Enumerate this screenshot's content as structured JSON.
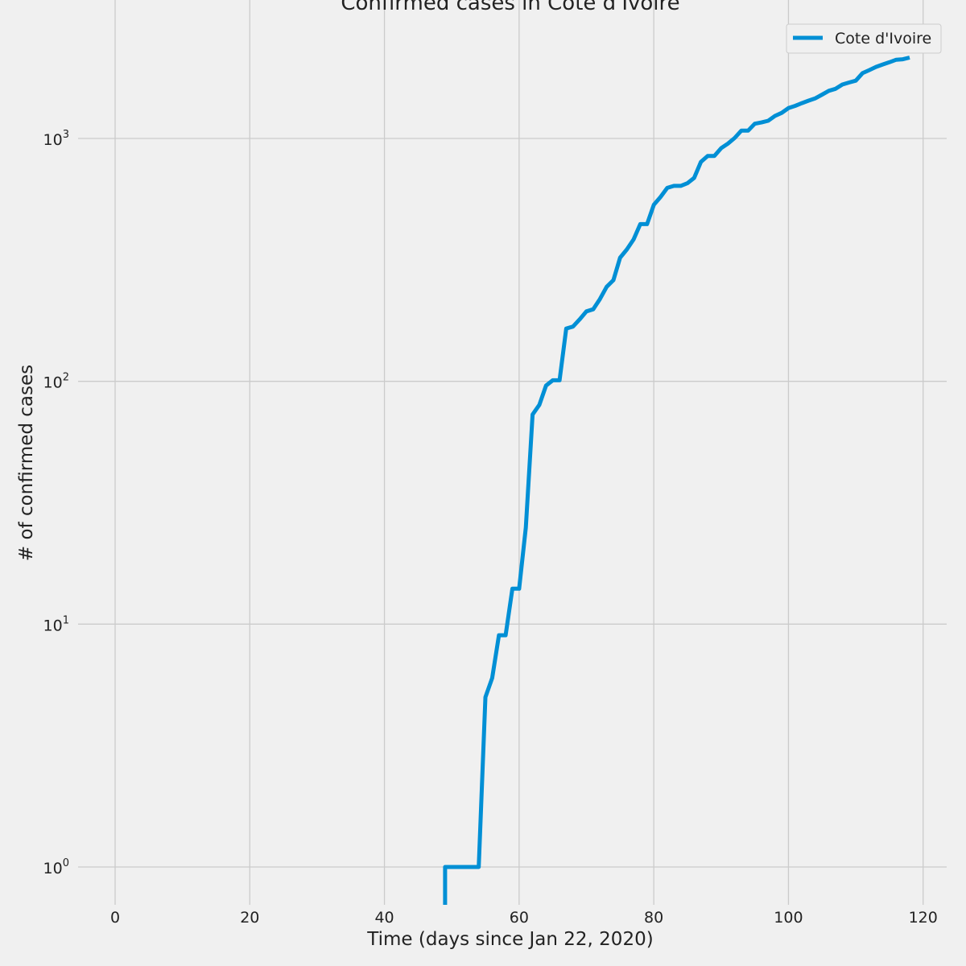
{
  "chart_data": {
    "type": "line",
    "title": "Confirmed cases in Cote d'Ivoire",
    "xlabel": "Time (days since Jan 22, 2020)",
    "ylabel": "# of confirmed cases",
    "xlim": [
      -5.5,
      123.5
    ],
    "ylim": [
      0.7,
      2700
    ],
    "y_scale": "log",
    "grid": true,
    "legend_position": "top-right",
    "x_ticks": [
      0,
      20,
      40,
      60,
      80,
      100,
      120
    ],
    "y_ticks": [
      {
        "value": 1,
        "base": "10",
        "exp": "0"
      },
      {
        "value": 10,
        "base": "10",
        "exp": "1"
      },
      {
        "value": 100,
        "base": "10",
        "exp": "2"
      },
      {
        "value": 1000,
        "base": "10",
        "exp": "3"
      }
    ],
    "colors": {
      "background": "#f0f0f0",
      "line": "#008fd5",
      "grid": "#cbcbcb"
    },
    "series": [
      {
        "name": "Cote d'Ivoire",
        "x": [
          49,
          50,
          51,
          52,
          53,
          54,
          55,
          56,
          57,
          58,
          59,
          60,
          61,
          62,
          63,
          64,
          65,
          66,
          67,
          68,
          69,
          70,
          71,
          72,
          73,
          74,
          75,
          76,
          77,
          78,
          79,
          80,
          81,
          82,
          83,
          84,
          85,
          86,
          87,
          88,
          89,
          90,
          91,
          92,
          93,
          94,
          95,
          96,
          97,
          98,
          99,
          100,
          101,
          102,
          103,
          104,
          105,
          106,
          107,
          108,
          109,
          110,
          111,
          112,
          113,
          114,
          115,
          116,
          117,
          118
        ],
        "values": [
          1,
          1,
          1,
          1,
          1,
          1,
          5,
          6,
          9,
          9,
          14,
          14,
          25,
          73,
          80,
          96,
          101,
          101,
          165,
          168,
          180,
          194,
          198,
          218,
          245,
          261,
          323,
          349,
          384,
          444,
          444,
          533,
          574,
          626,
          638,
          638,
          654,
          688,
          801,
          847,
          847,
          912,
          952,
          1004,
          1077,
          1077,
          1150,
          1164,
          1183,
          1238,
          1275,
          1333,
          1362,
          1398,
          1432,
          1464,
          1516,
          1571,
          1602,
          1667,
          1700,
          1730,
          1857,
          1912,
          1971,
          2017,
          2061,
          2109,
          2119,
          2153
        ]
      }
    ]
  }
}
